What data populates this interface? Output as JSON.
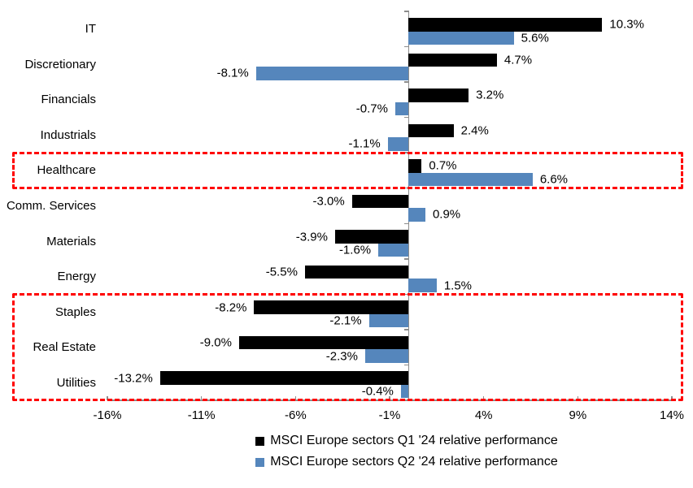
{
  "chart_data": {
    "type": "bar",
    "orientation": "horizontal",
    "title": "",
    "categories": [
      "IT",
      "Discretionary",
      "Financials",
      "Industrials",
      "Healthcare",
      "Comm. Services",
      "Materials",
      "Energy",
      "Staples",
      "Real Estate",
      "Utilities"
    ],
    "series": [
      {
        "key": "q1",
        "name": "MSCI Europe sectors Q1 '24 relative performance",
        "color": "#000000",
        "values": [
          10.3,
          4.7,
          3.2,
          2.4,
          0.7,
          -3.0,
          -3.9,
          -5.5,
          -8.2,
          -9.0,
          -13.2
        ],
        "labels": [
          "10.3%",
          "4.7%",
          "3.2%",
          "2.4%",
          "0.7%",
          "-3.0%",
          "-3.9%",
          "-5.5%",
          "-8.2%",
          "-9.0%",
          "-13.2%"
        ]
      },
      {
        "key": "q2",
        "name": "MSCI Europe sectors Q2 '24 relative performance",
        "color": "#5586bc",
        "values": [
          5.6,
          -8.1,
          -0.7,
          -1.1,
          6.6,
          0.9,
          -1.6,
          1.5,
          -2.1,
          -2.3,
          -0.4
        ],
        "labels": [
          "5.6%",
          "-8.1%",
          "-0.7%",
          "-1.1%",
          "6.6%",
          "0.9%",
          "-1.6%",
          "1.5%",
          "-2.1%",
          "-2.3%",
          "-0.4%"
        ]
      }
    ],
    "x_axis": {
      "min": -16,
      "max": 14,
      "ticks": [
        -16,
        -11,
        -6,
        -1,
        4,
        9,
        14
      ],
      "tick_labels": [
        "-16%",
        "-11%",
        "-6%",
        "-1%",
        "4%",
        "9%",
        "14%"
      ]
    },
    "axis_color": "#8c8c8c",
    "grid": false,
    "legend_position": "bottom",
    "highlights": [
      {
        "name": "healthcare-highlight-box",
        "start_index": 4,
        "end_index": 4,
        "color": "#ff0000"
      },
      {
        "name": "defensives-highlight-box",
        "start_index": 8,
        "end_index": 10,
        "color": "#ff0000"
      }
    ]
  }
}
